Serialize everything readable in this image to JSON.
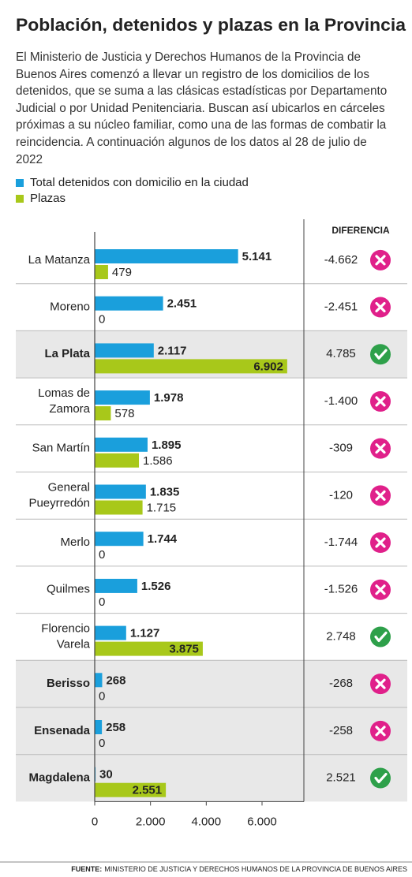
{
  "chart_data": {
    "type": "bar",
    "title": "Población, detenidos y plazas en la Provincia",
    "description": "El Ministerio de Justicia y Derechos Humanos de la Provincia de Buenos Aires comenzó a llevar un registro de los domicilios de los detenidos, que se suma a las clásicas estadísticas por Departamento Judicial o por Unidad Penitenciaria. Buscan así ubicarlos en cárceles próximas a su núcleo familiar, como una de las formas de combatir la reincidencia. A continuación algunos de los datos al 28 de julio de 2022",
    "categories": [
      "La Matanza",
      "Moreno",
      "La Plata",
      "Lomas de Zamora",
      "San Martín",
      "General Pueyrredón",
      "Merlo",
      "Quilmes",
      "Florencio Varela",
      "Berisso",
      "Ensenada",
      "Magdalena"
    ],
    "highlighted": [
      false,
      false,
      true,
      false,
      false,
      false,
      false,
      false,
      false,
      true,
      true,
      true
    ],
    "series": [
      {
        "name": "Total detenidos con domicilio en la ciudad",
        "color": "#1a9fdc",
        "values": [
          5141,
          2451,
          2117,
          1978,
          1895,
          1835,
          1744,
          1526,
          1127,
          268,
          258,
          30
        ],
        "value_labels": [
          "5.141",
          "2.451",
          "2.117",
          "1.978",
          "1.895",
          "1.835",
          "1.744",
          "1.526",
          "1.127",
          "268",
          "258",
          "30"
        ]
      },
      {
        "name": "Plazas",
        "color": "#a8c81a",
        "values": [
          479,
          0,
          6902,
          578,
          1586,
          1715,
          0,
          0,
          3875,
          0,
          0,
          2551
        ],
        "value_labels": [
          "479",
          "0",
          "6.902",
          "578",
          "1.586",
          "1.715",
          "0",
          "0",
          "3.875",
          "0",
          "0",
          "2.551"
        ]
      }
    ],
    "difference": {
      "title": "DIFERENCIA",
      "values": [
        -4662,
        -2451,
        4785,
        -1400,
        -309,
        -120,
        -1744,
        -1526,
        2748,
        -268,
        -258,
        2521
      ],
      "value_labels": [
        "-4.662",
        "-2.451",
        "4.785",
        "-1.400",
        "-309",
        "-120",
        "-1.744",
        "-1.526",
        "2.748",
        "-268",
        "-258",
        "2.521"
      ]
    },
    "xlim": [
      0,
      7500
    ],
    "xticks": [
      0,
      {
        "value": 2000,
        "label": "2.000"
      },
      {
        "value": 4000,
        "label": "4.000"
      },
      {
        "value": 6000,
        "label": "6.000"
      }
    ],
    "source": {
      "label": "FUENTE:",
      "text": "MINISTERIO DE JUSTICIA Y DERECHOS HUMANOS DE LA PROVINCIA DE BUENOS AIRES"
    }
  }
}
